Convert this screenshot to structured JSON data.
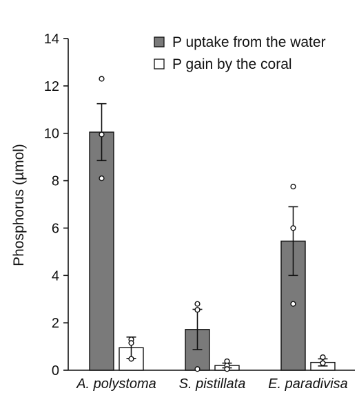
{
  "chart_data": {
    "type": "bar",
    "ylabel": "Phosphorus (µmol)",
    "xlabel": "",
    "ylim": [
      0,
      14
    ],
    "yticks": [
      0,
      2,
      4,
      6,
      8,
      10,
      12,
      14
    ],
    "categories": [
      "A. polystoma",
      "S. pistillata",
      "E. paradivisa"
    ],
    "legend_position": "top-right",
    "grid": false,
    "series": [
      {
        "name": "P uptake from the water",
        "color": "#7a7a7a",
        "values": [
          10.05,
          1.72,
          5.45
        ],
        "errors": [
          1.2,
          0.85,
          1.45
        ],
        "points": [
          [
            12.3,
            9.95,
            8.1
          ],
          [
            2.8,
            2.55,
            0.05
          ],
          [
            7.75,
            6.0,
            2.8
          ]
        ]
      },
      {
        "name": "P gain by the coral",
        "color": "#ffffff",
        "values": [
          0.95,
          0.2,
          0.33
        ],
        "errors": [
          0.45,
          0.1,
          0.15
        ],
        "points": [
          [
            1.3,
            1.15,
            0.48
          ],
          [
            0.38,
            0.2,
            0.05
          ],
          [
            0.55,
            0.3,
            0.3
          ]
        ]
      }
    ]
  }
}
